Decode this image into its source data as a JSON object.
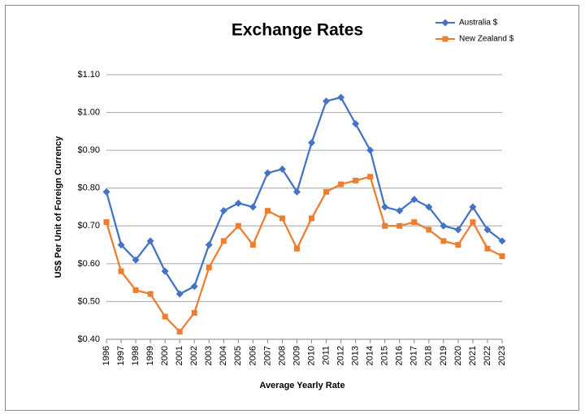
{
  "chart_data": {
    "type": "line",
    "title": "Exchange Rates",
    "x_label": "Average Yearly Rate",
    "y_label": "US$ Per Unit of Foreign Currency",
    "categories": [
      "1996",
      "1997",
      "1998",
      "1999",
      "2000",
      "2001",
      "2002",
      "2003",
      "2004",
      "2005",
      "2006",
      "2007",
      "2008",
      "2009",
      "2010",
      "2011",
      "2012",
      "2013",
      "2014",
      "2015",
      "2016",
      "2017",
      "2018",
      "2019",
      "2020",
      "2021",
      "2022",
      "2023"
    ],
    "series": [
      {
        "name": "Australia $",
        "color": "#4472c4",
        "marker": "diamond",
        "values": [
          0.79,
          0.65,
          0.61,
          0.66,
          0.58,
          0.52,
          0.54,
          0.65,
          0.74,
          0.76,
          0.75,
          0.84,
          0.85,
          0.79,
          0.92,
          1.03,
          1.04,
          0.97,
          0.9,
          0.75,
          0.74,
          0.77,
          0.75,
          0.7,
          0.69,
          0.75,
          0.69,
          0.66
        ]
      },
      {
        "name": "New Zealand $",
        "color": "#ed7d31",
        "marker": "square",
        "values": [
          0.71,
          0.58,
          0.53,
          0.52,
          0.46,
          0.42,
          0.47,
          0.59,
          0.66,
          0.7,
          0.65,
          0.74,
          0.72,
          0.64,
          0.72,
          0.79,
          0.81,
          0.82,
          0.83,
          0.7,
          0.7,
          0.71,
          0.69,
          0.66,
          0.65,
          0.71,
          0.64,
          0.62
        ]
      }
    ],
    "ylim": [
      0.4,
      1.1
    ],
    "yticks": [
      {
        "value": 0.4,
        "label": "$0.40"
      },
      {
        "value": 0.5,
        "label": "$0.50"
      },
      {
        "value": 0.6,
        "label": "$0.60"
      },
      {
        "value": 0.7,
        "label": "$0.70"
      },
      {
        "value": 0.8,
        "label": "$0.80"
      },
      {
        "value": 0.9,
        "label": "$0.90"
      },
      {
        "value": 1.0,
        "label": "$1.00"
      },
      {
        "value": 1.1,
        "label": "$1.10"
      }
    ],
    "grid": true,
    "legend": "top-right"
  }
}
